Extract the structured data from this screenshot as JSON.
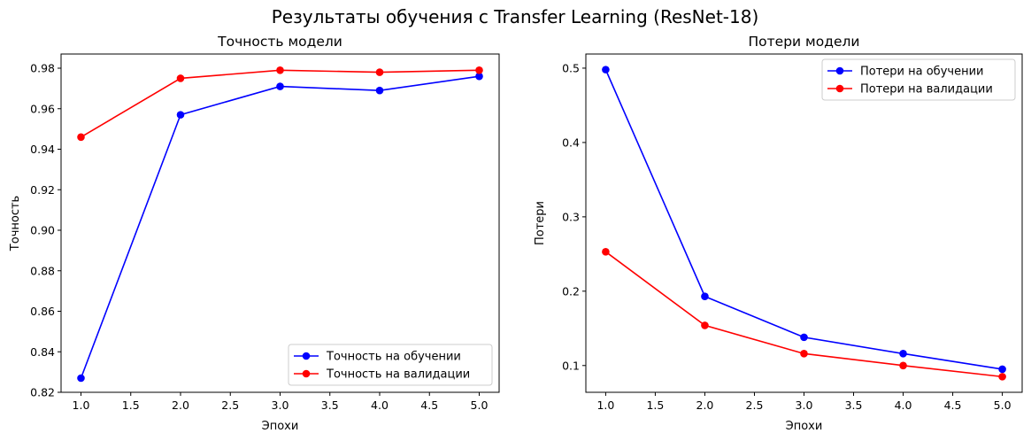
{
  "figure": {
    "title": "Результаты обучения с Transfer Learning (ResNet-18)"
  },
  "chart_data": [
    {
      "type": "line",
      "title": "Точность модели",
      "xlabel": "Эпохи",
      "ylabel": "Точность",
      "x": [
        1,
        2,
        3,
        4,
        5
      ],
      "xlim": [
        0.8,
        5.2
      ],
      "ylim": [
        0.82,
        0.987
      ],
      "xticks": [
        1.0,
        1.5,
        2.0,
        2.5,
        3.0,
        3.5,
        4.0,
        4.5,
        5.0
      ],
      "xtick_labels": [
        "1.0",
        "1.5",
        "2.0",
        "2.5",
        "3.0",
        "3.5",
        "4.0",
        "4.5",
        "5.0"
      ],
      "yticks": [
        0.82,
        0.84,
        0.86,
        0.88,
        0.9,
        0.92,
        0.94,
        0.96,
        0.98
      ],
      "ytick_labels": [
        "0.82",
        "0.84",
        "0.86",
        "0.88",
        "0.90",
        "0.92",
        "0.94",
        "0.96",
        "0.98"
      ],
      "grid": false,
      "legend": "lower-right",
      "series": [
        {
          "name": "Точность на обучении",
          "color": "#0000ff",
          "values": [
            0.827,
            0.957,
            0.971,
            0.969,
            0.976
          ]
        },
        {
          "name": "Точность на валидации",
          "color": "#ff0000",
          "values": [
            0.946,
            0.975,
            0.979,
            0.978,
            0.979
          ]
        }
      ]
    },
    {
      "type": "line",
      "title": "Потери модели",
      "xlabel": "Эпохи",
      "ylabel": "Потери",
      "x": [
        1,
        2,
        3,
        4,
        5
      ],
      "xlim": [
        0.8,
        5.2
      ],
      "ylim": [
        0.064,
        0.519
      ],
      "xticks": [
        1.0,
        1.5,
        2.0,
        2.5,
        3.0,
        3.5,
        4.0,
        4.5,
        5.0
      ],
      "xtick_labels": [
        "1.0",
        "1.5",
        "2.0",
        "2.5",
        "3.0",
        "3.5",
        "4.0",
        "4.5",
        "5.0"
      ],
      "yticks": [
        0.1,
        0.2,
        0.3,
        0.4,
        0.5
      ],
      "ytick_labels": [
        "0.1",
        "0.2",
        "0.3",
        "0.4",
        "0.5"
      ],
      "grid": false,
      "legend": "upper-right",
      "series": [
        {
          "name": "Потери на обучении",
          "color": "#0000ff",
          "values": [
            0.498,
            0.193,
            0.138,
            0.116,
            0.095
          ]
        },
        {
          "name": "Потери на валидации",
          "color": "#ff0000",
          "values": [
            0.253,
            0.154,
            0.116,
            0.1,
            0.085
          ]
        }
      ]
    }
  ]
}
